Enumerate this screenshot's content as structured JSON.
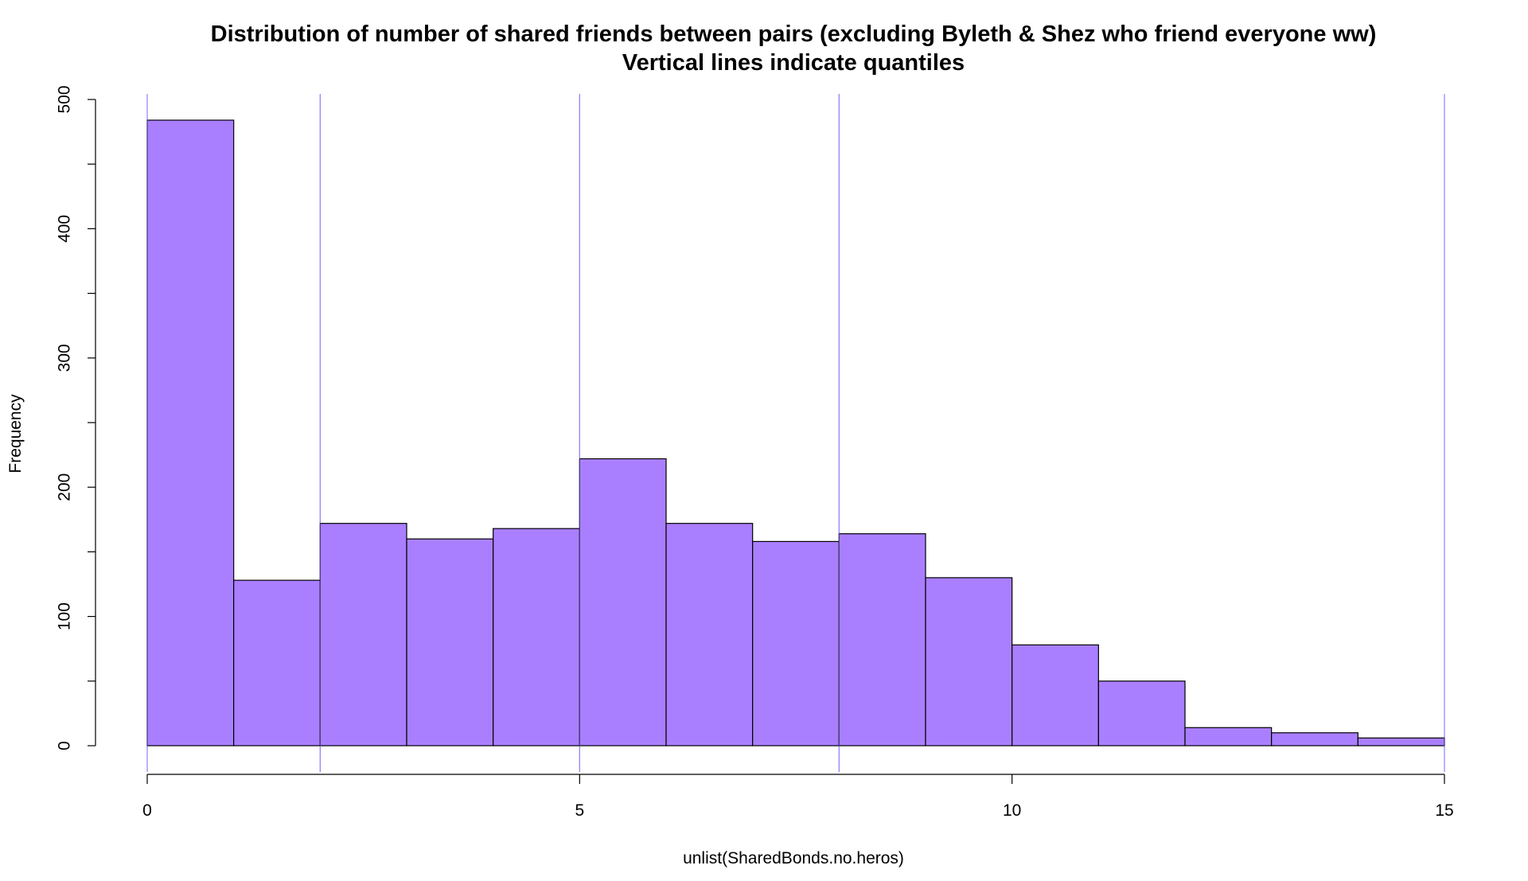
{
  "chart_data": {
    "type": "bar",
    "title": "Distribution of number of shared friends between pairs (excluding Byleth & Shez who friend everyone ww)",
    "subtitle": "Vertical lines indicate quantiles",
    "xlabel": "unlist(SharedBonds.no.heros)",
    "ylabel": "Frequency",
    "xlim": [
      0,
      15
    ],
    "ylim": [
      0,
      500
    ],
    "x_ticks": [
      0,
      5,
      10,
      15
    ],
    "y_ticks": [
      0,
      100,
      200,
      300,
      400,
      500
    ],
    "bins": [
      {
        "start": 0,
        "end": 1,
        "count": 484
      },
      {
        "start": 1,
        "end": 2,
        "count": 128
      },
      {
        "start": 2,
        "end": 3,
        "count": 172
      },
      {
        "start": 3,
        "end": 4,
        "count": 160
      },
      {
        "start": 4,
        "end": 5,
        "count": 168
      },
      {
        "start": 5,
        "end": 6,
        "count": 222
      },
      {
        "start": 6,
        "end": 7,
        "count": 172
      },
      {
        "start": 7,
        "end": 8,
        "count": 158
      },
      {
        "start": 8,
        "end": 9,
        "count": 164
      },
      {
        "start": 9,
        "end": 10,
        "count": 130
      },
      {
        "start": 10,
        "end": 11,
        "count": 78
      },
      {
        "start": 11,
        "end": 12,
        "count": 50
      },
      {
        "start": 12,
        "end": 13,
        "count": 14
      },
      {
        "start": 13,
        "end": 14,
        "count": 10
      },
      {
        "start": 14,
        "end": 15,
        "count": 6
      }
    ],
    "quantiles": [
      0,
      2,
      5,
      8,
      15
    ],
    "colors": {
      "bar_fill": "#a97fff",
      "bar_stroke": "#000000",
      "quantile_line": "#8f7fff",
      "axis": "#000000"
    },
    "grid": false,
    "legend": "none"
  }
}
